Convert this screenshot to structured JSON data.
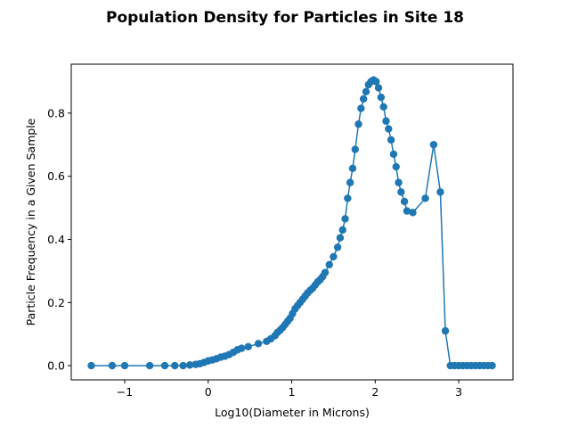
{
  "chart_data": {
    "type": "line",
    "title": "Population Density for Particles in Site 18",
    "xlabel": "Log10(Diameter in Microns)",
    "ylabel": "Particle Frequency in a Given Sample",
    "xlim": [
      -1.64,
      3.65
    ],
    "ylim": [
      -0.045,
      0.955
    ],
    "xticks": [
      -1,
      0,
      1,
      2,
      3
    ],
    "xtick_labels": [
      "−1",
      "0",
      "1",
      "2",
      "3"
    ],
    "yticks": [
      0.0,
      0.2,
      0.4,
      0.6,
      0.8
    ],
    "ytick_labels": [
      "0.0",
      "0.2",
      "0.4",
      "0.6",
      "0.8"
    ],
    "grid": false,
    "color": "#1f77b4",
    "marker": "circle",
    "x": [
      -1.4,
      -1.15,
      -1.0,
      -0.7,
      -0.52,
      -0.4,
      -0.3,
      -0.22,
      -0.15,
      -0.1,
      -0.05,
      0.0,
      0.05,
      0.1,
      0.15,
      0.2,
      0.25,
      0.3,
      0.35,
      0.4,
      0.48,
      0.6,
      0.7,
      0.75,
      0.8,
      0.83,
      0.86,
      0.89,
      0.92,
      0.95,
      0.98,
      1.01,
      1.04,
      1.07,
      1.1,
      1.13,
      1.16,
      1.19,
      1.22,
      1.25,
      1.28,
      1.31,
      1.34,
      1.37,
      1.4,
      1.45,
      1.5,
      1.55,
      1.58,
      1.61,
      1.64,
      1.67,
      1.7,
      1.73,
      1.76,
      1.8,
      1.83,
      1.86,
      1.89,
      1.92,
      1.95,
      1.98,
      2.01,
      2.04,
      2.07,
      2.1,
      2.13,
      2.16,
      2.19,
      2.22,
      2.25,
      2.28,
      2.31,
      2.35,
      2.38,
      2.45,
      2.6,
      2.7,
      2.78,
      2.84,
      2.9,
      2.95,
      3.0,
      3.05,
      3.1,
      3.15,
      3.2,
      3.25,
      3.3,
      3.35,
      3.4
    ],
    "y": [
      0.0,
      0.0,
      0.0,
      0.0,
      0.0,
      0.0,
      0.0,
      0.002,
      0.004,
      0.006,
      0.01,
      0.015,
      0.018,
      0.022,
      0.027,
      0.03,
      0.035,
      0.042,
      0.05,
      0.055,
      0.06,
      0.07,
      0.077,
      0.085,
      0.095,
      0.105,
      0.112,
      0.12,
      0.13,
      0.14,
      0.15,
      0.165,
      0.18,
      0.19,
      0.2,
      0.21,
      0.22,
      0.23,
      0.238,
      0.245,
      0.255,
      0.265,
      0.272,
      0.282,
      0.295,
      0.32,
      0.345,
      0.375,
      0.405,
      0.43,
      0.465,
      0.53,
      0.58,
      0.625,
      0.685,
      0.765,
      0.815,
      0.845,
      0.868,
      0.89,
      0.9,
      0.905,
      0.9,
      0.88,
      0.85,
      0.82,
      0.775,
      0.75,
      0.715,
      0.67,
      0.63,
      0.58,
      0.55,
      0.52,
      0.49,
      0.485,
      0.53,
      0.7,
      0.55,
      0.11,
      0.0,
      0.0,
      0.0,
      0.0,
      0.0,
      0.0,
      0.0,
      0.0,
      0.0,
      0.0,
      0.0
    ]
  }
}
